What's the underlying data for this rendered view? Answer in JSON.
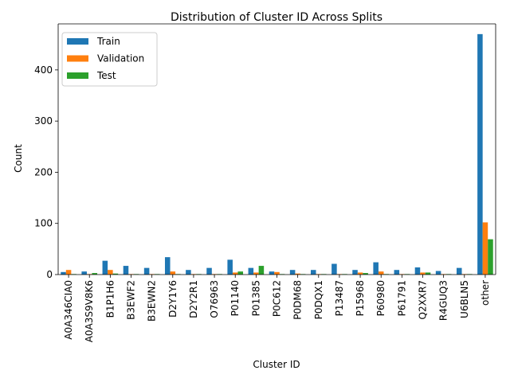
{
  "chart_data": {
    "type": "bar",
    "title": "Distribution of Cluster ID Across Splits",
    "xlabel": "Cluster ID",
    "ylabel": "Count",
    "ylim": [
      0,
      490
    ],
    "yticks": [
      0,
      100,
      200,
      300,
      400
    ],
    "grid": false,
    "legend_position": "top-left",
    "categories": [
      "A0A346CIA0",
      "A0A3S9V8K6",
      "B1P1H6",
      "B3EWF2",
      "B3EWN2",
      "D2Y1Y6",
      "D2Y2R1",
      "O76963",
      "P01140",
      "P01385",
      "P0C612",
      "P0DM68",
      "P0DQX1",
      "P13487",
      "P15968",
      "P60980",
      "P61791",
      "Q2XXR7",
      "R4GUQ3",
      "U6BLN5",
      "other"
    ],
    "series": [
      {
        "name": "Train",
        "color": "#1f77b4",
        "values": [
          5,
          6,
          27,
          17,
          13,
          34,
          9,
          13,
          29,
          13,
          6,
          9,
          9,
          21,
          9,
          24,
          9,
          14,
          7,
          13,
          470
        ]
      },
      {
        "name": "Validation",
        "color": "#ff7f0e",
        "values": [
          9,
          1,
          9,
          1,
          1,
          6,
          1,
          1,
          4,
          4,
          5,
          2,
          1,
          1,
          4,
          6,
          1,
          4,
          1,
          1,
          102
        ]
      },
      {
        "name": "Test",
        "color": "#2ca02c",
        "values": [
          1,
          3,
          2,
          1,
          1,
          1,
          1,
          1,
          6,
          17,
          1,
          1,
          1,
          1,
          3,
          1,
          1,
          4,
          1,
          1,
          69
        ]
      }
    ]
  }
}
